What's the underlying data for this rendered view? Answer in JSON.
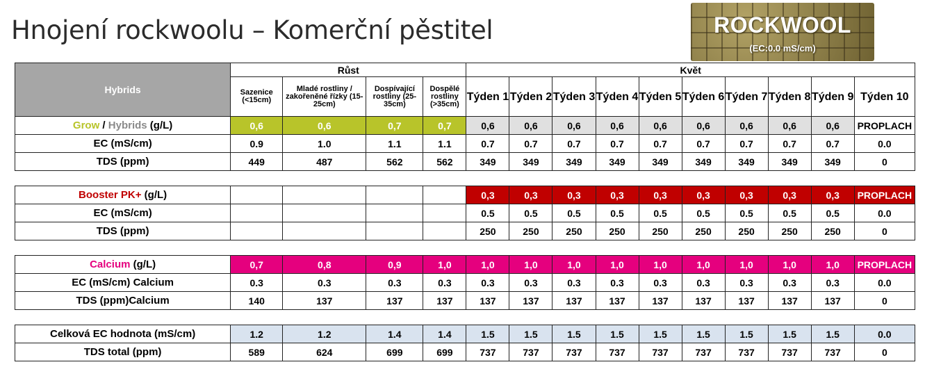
{
  "title": "Hnojení rockwoolu – Komerční pěstitel",
  "badge": {
    "name": "ROCKWOOL",
    "ec": "(EC:0.0 mS/cm)"
  },
  "header": {
    "hybrids": "Hybrids",
    "rust": "Růst",
    "kvet": "Květ",
    "sazenice": "Sazenice (<15cm)",
    "mlade": "Mladé rostliny / zakořeněné řízky (15-25cm)",
    "dospivajici": "Dospívající rostliny (25-35cm)",
    "dospele": "Dospělé rostliny (>35cm)",
    "weeks": [
      "Týden 1",
      "Týden 2",
      "Týden 3",
      "Týden 4",
      "Týden 5",
      "Týden 6",
      "Týden 7",
      "Týden 8",
      "Týden 9",
      "Týden 10"
    ]
  },
  "grow": {
    "label_a": "Grow",
    "label_sep": " / ",
    "label_b": "Hybrids",
    "label_unit": " (g/L)",
    "dose": [
      "0,6",
      "0,6",
      "0,7",
      "0,7",
      "0,6",
      "0,6",
      "0,6",
      "0,6",
      "0,6",
      "0,6",
      "0,6",
      "0,6",
      "0,6",
      "PROPLACH"
    ],
    "ec_label": "EC (mS/cm)",
    "ec": [
      "0.9",
      "1.0",
      "1.1",
      "1.1",
      "0.7",
      "0.7",
      "0.7",
      "0.7",
      "0.7",
      "0.7",
      "0.7",
      "0.7",
      "0.7",
      "0.0"
    ],
    "tds_label": "TDS (ppm)",
    "tds": [
      "449",
      "487",
      "562",
      "562",
      "349",
      "349",
      "349",
      "349",
      "349",
      "349",
      "349",
      "349",
      "349",
      "0"
    ]
  },
  "booster": {
    "label_a": "Booster PK+",
    "label_unit": " (g/L)",
    "dose": [
      "",
      "",
      "",
      "",
      "0,3",
      "0,3",
      "0,3",
      "0,3",
      "0,3",
      "0,3",
      "0,3",
      "0,3",
      "0,3",
      "PROPLACH"
    ],
    "ec_label": "EC (mS/cm)",
    "ec": [
      "",
      "",
      "",
      "",
      "0.5",
      "0.5",
      "0.5",
      "0.5",
      "0.5",
      "0.5",
      "0.5",
      "0.5",
      "0.5",
      "0.0"
    ],
    "tds_label": "TDS (ppm)",
    "tds": [
      "",
      "",
      "",
      "",
      "250",
      "250",
      "250",
      "250",
      "250",
      "250",
      "250",
      "250",
      "250",
      "0"
    ]
  },
  "calcium": {
    "label_a": "Calcium",
    "label_unit": " (g/L)",
    "dose": [
      "0,7",
      "0,8",
      "0,9",
      "1,0",
      "1,0",
      "1,0",
      "1,0",
      "1,0",
      "1,0",
      "1,0",
      "1,0",
      "1,0",
      "1,0",
      "PROPLACH"
    ],
    "ec_label": "EC (mS/cm) Calcium",
    "ec": [
      "0.3",
      "0.3",
      "0.3",
      "0.3",
      "0.3",
      "0.3",
      "0.3",
      "0.3",
      "0.3",
      "0.3",
      "0.3",
      "0.3",
      "0.3",
      "0.0"
    ],
    "tds_label": "TDS (ppm)Calcium",
    "tds": [
      "140",
      "137",
      "137",
      "137",
      "137",
      "137",
      "137",
      "137",
      "137",
      "137",
      "137",
      "137",
      "137",
      "0"
    ]
  },
  "total": {
    "ec_label": "Celková EC hodnota (mS/cm)",
    "ec": [
      "1.2",
      "1.2",
      "1.4",
      "1.4",
      "1.5",
      "1.5",
      "1.5",
      "1.5",
      "1.5",
      "1.5",
      "1.5",
      "1.5",
      "1.5",
      "0.0"
    ],
    "tds_label": "TDS total (ppm)",
    "tds": [
      "589",
      "624",
      "699",
      "699",
      "737",
      "737",
      "737",
      "737",
      "737",
      "737",
      "737",
      "737",
      "737",
      "0"
    ]
  },
  "colors": {
    "grow": "#b8c42a",
    "hybrids_header": "#a6a6a6",
    "booster": "#c00000",
    "calcium": "#e5007e",
    "total": "#d9e3ef",
    "flower_week_grey": "#e0e0e0"
  }
}
